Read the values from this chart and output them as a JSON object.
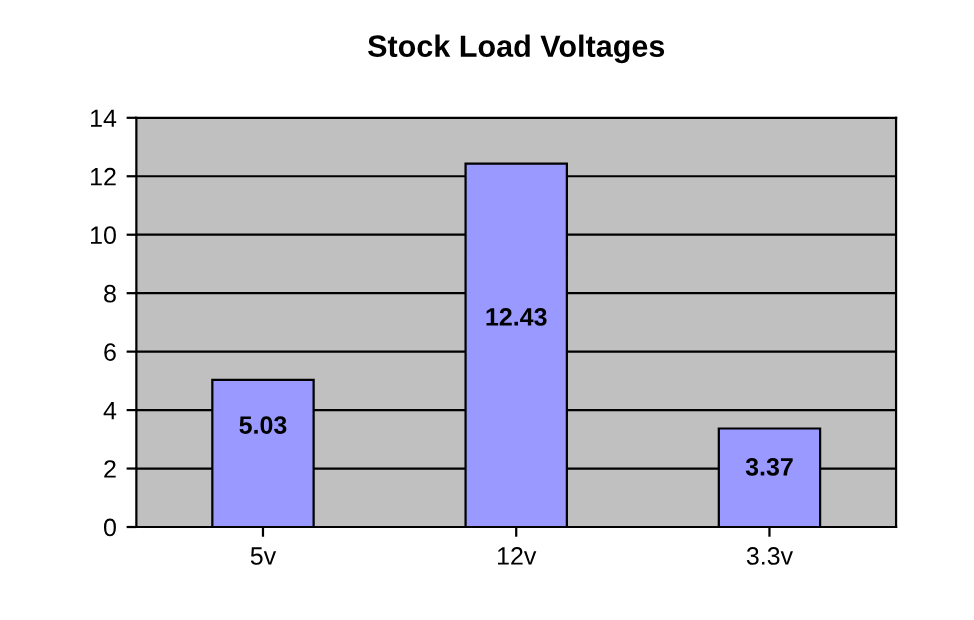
{
  "chart_data": {
    "type": "bar",
    "title": "Stock Load Voltages",
    "categories": [
      "5v",
      "12v",
      "3.3v"
    ],
    "values": [
      5.03,
      12.43,
      3.37
    ],
    "color": "#9999ff",
    "ylim": [
      0,
      14
    ],
    "yticks": [
      0,
      2,
      4,
      6,
      8,
      10,
      12,
      14
    ],
    "grid": "y",
    "data_labels": true
  }
}
